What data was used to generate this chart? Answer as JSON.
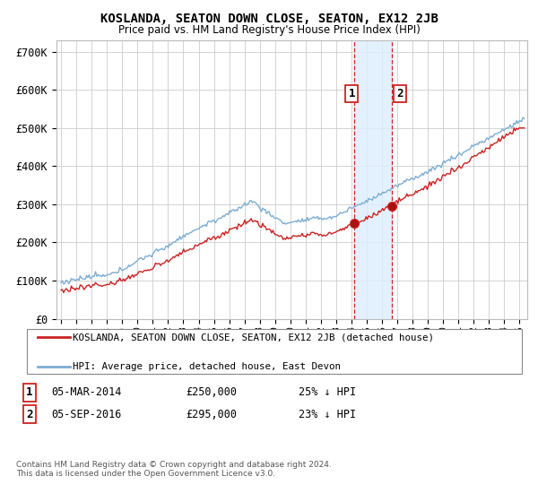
{
  "title": "KOSLANDA, SEATON DOWN CLOSE, SEATON, EX12 2JB",
  "subtitle": "Price paid vs. HM Land Registry's House Price Index (HPI)",
  "ylim": [
    0,
    730000
  ],
  "xlim_start": 1994.7,
  "xlim_end": 2025.5,
  "line1_color": "#cc2222",
  "line2_color": "#7dadd4",
  "shade_color": "#ddeeff",
  "vline_color": "#cc2222",
  "purchase1_x": 2014.17,
  "purchase1_y": 250000,
  "purchase2_x": 2016.67,
  "purchase2_y": 295000,
  "legend_line1": "KOSLANDA, SEATON DOWN CLOSE, SEATON, EX12 2JB (detached house)",
  "legend_line2": "HPI: Average price, detached house, East Devon",
  "footer": "Contains HM Land Registry data © Crown copyright and database right 2024.\nThis data is licensed under the Open Government Licence v3.0.",
  "background_color": "#ffffff",
  "grid_color": "#cccccc"
}
